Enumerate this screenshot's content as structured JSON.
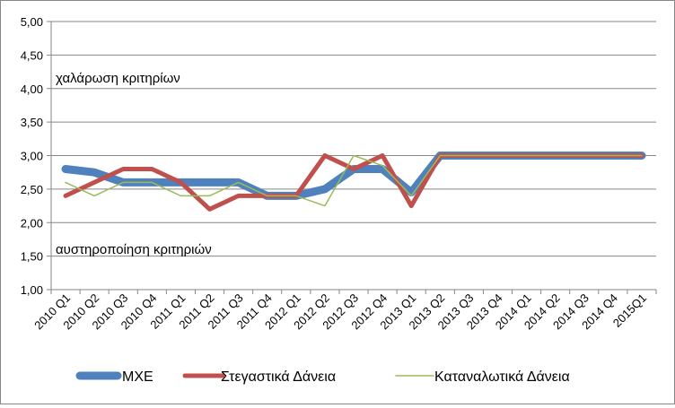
{
  "chart_data": {
    "type": "line",
    "categories": [
      "2010 Q1",
      "2010 Q2",
      "2010 Q3",
      "2010 Q4",
      "2011 Q1",
      "2011 Q2",
      "2011 Q3",
      "2011 Q4",
      "2012 Q1",
      "2012 Q2",
      "2012 Q3",
      "2012 Q4",
      "2013 Q1",
      "2013 Q2",
      "2013 Q3",
      "2013 Q4",
      "2014 Q1",
      "2014 Q2",
      "2014 Q3",
      "2014 Q4",
      "2015Q1"
    ],
    "ylim": [
      1.0,
      5.0
    ],
    "y_ticks": [
      "1,00",
      "1,50",
      "2,00",
      "2,50",
      "3,00",
      "3,50",
      "4,00",
      "4,50",
      "5,00"
    ],
    "grid": "horizontal",
    "legend_position": "bottom",
    "annotations": {
      "upper": "χαλάρωση κριτηρίων",
      "lower": "αυστηροποίηση κριτηριών"
    },
    "series": [
      {
        "name": "ΜΧΕ",
        "color": "#4f81bd",
        "values": [
          2.8,
          2.75,
          2.6,
          2.6,
          2.6,
          2.6,
          2.6,
          2.4,
          2.4,
          2.5,
          2.8,
          2.8,
          2.45,
          3.0,
          3.0,
          3.0,
          3.0,
          3.0,
          3.0,
          3.0,
          3.0
        ]
      },
      {
        "name": "Στεγαστικά Δάνεια",
        "color": "#c0504d",
        "values": [
          2.4,
          2.6,
          2.8,
          2.8,
          2.6,
          2.2,
          2.4,
          2.4,
          2.4,
          3.0,
          2.8,
          3.0,
          2.25,
          3.0,
          3.0,
          3.0,
          3.0,
          3.0,
          3.0,
          3.0,
          3.0
        ]
      },
      {
        "name": "Καταναλωτικά Δάνεια",
        "color": "#9bbb59",
        "values": [
          2.6,
          2.4,
          2.6,
          2.6,
          2.4,
          2.4,
          2.6,
          2.4,
          2.4,
          2.25,
          3.0,
          2.85,
          2.4,
          3.0,
          3.0,
          3.0,
          3.0,
          3.0,
          3.0,
          3.0,
          3.0
        ]
      }
    ]
  }
}
